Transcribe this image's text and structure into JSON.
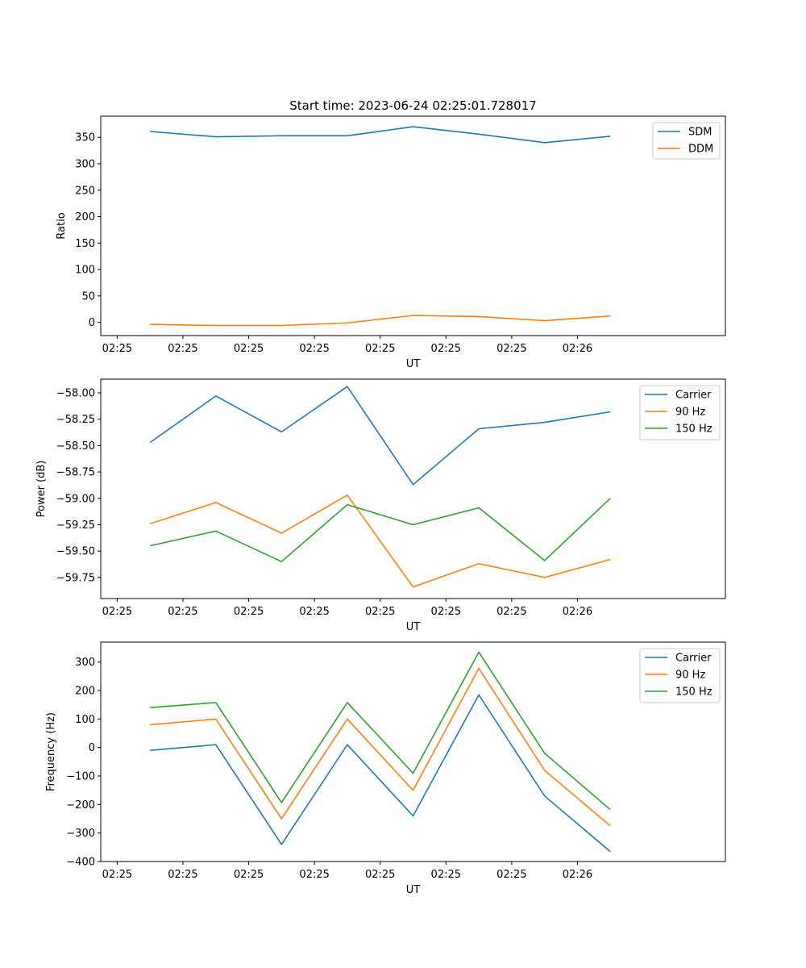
{
  "title": "Start time: 2023-06-24 02:25:01.728017",
  "colors": {
    "c0": "#1f77b4",
    "c1": "#ff7f0e",
    "c2": "#2ca02c"
  },
  "chart_data": [
    {
      "type": "line",
      "xlabel": "UT",
      "ylabel": "Ratio",
      "xticks": [
        "02:25",
        "02:25",
        "02:25",
        "02:25",
        "02:25",
        "02:25",
        "02:25",
        "02:26"
      ],
      "xlim": [
        -0.25,
        9.25
      ],
      "ylim": [
        -25,
        390
      ],
      "yticks": [
        0,
        50,
        100,
        150,
        200,
        250,
        300,
        350
      ],
      "x": [
        0.5,
        1.5,
        2.5,
        3.5,
        4.5,
        5.5,
        6.5,
        7.5
      ],
      "legend_position": "top-right",
      "series": [
        {
          "name": "SDM",
          "color": "#1f77b4",
          "values": [
            361,
            351,
            353,
            353,
            370,
            356,
            340,
            352
          ]
        },
        {
          "name": "DDM",
          "color": "#ff7f0e",
          "values": [
            -4,
            -6,
            -6,
            -1,
            13,
            11,
            3,
            12
          ]
        }
      ]
    },
    {
      "type": "line",
      "xlabel": "UT",
      "ylabel": "Power (dB)",
      "xticks": [
        "02:25",
        "02:25",
        "02:25",
        "02:25",
        "02:25",
        "02:25",
        "02:25",
        "02:26"
      ],
      "xlim": [
        -0.25,
        9.25
      ],
      "ylim": [
        -59.95,
        -57.87
      ],
      "yticks": [
        -58.0,
        -58.25,
        -58.5,
        -58.75,
        -59.0,
        -59.25,
        -59.5,
        -59.75
      ],
      "ytick_labels": [
        "−58.00",
        "−58.25",
        "−58.50",
        "−58.75",
        "−59.00",
        "−59.25",
        "−59.50",
        "−59.75"
      ],
      "x": [
        0.5,
        1.5,
        2.5,
        3.5,
        4.5,
        5.5,
        6.5,
        7.5
      ],
      "legend_position": "top-right",
      "series": [
        {
          "name": "Carrier",
          "color": "#1f77b4",
          "values": [
            -58.47,
            -58.03,
            -58.37,
            -57.94,
            -58.87,
            -58.34,
            -58.28,
            -58.18
          ]
        },
        {
          "name": "90 Hz",
          "color": "#ff7f0e",
          "values": [
            -59.24,
            -59.04,
            -59.33,
            -58.97,
            -59.84,
            -59.62,
            -59.75,
            -59.58
          ]
        },
        {
          "name": "150 Hz",
          "color": "#2ca02c",
          "values": [
            -59.45,
            -59.31,
            -59.6,
            -59.06,
            -59.25,
            -59.09,
            -59.59,
            -59.0
          ]
        }
      ]
    },
    {
      "type": "line",
      "xlabel": "UT",
      "ylabel": "Frequency (Hz)",
      "xticks": [
        "02:25",
        "02:25",
        "02:25",
        "02:25",
        "02:25",
        "02:25",
        "02:25",
        "02:26"
      ],
      "xlim": [
        -0.25,
        9.25
      ],
      "ylim": [
        -400,
        370
      ],
      "yticks": [
        300,
        200,
        100,
        0,
        -100,
        -200,
        -300,
        -400
      ],
      "ytick_labels": [
        "300",
        "200",
        "100",
        "0",
        "−100",
        "−200",
        "−300",
        "−400"
      ],
      "x": [
        0.5,
        1.5,
        2.5,
        3.5,
        4.5,
        5.5,
        6.5,
        7.5
      ],
      "legend_position": "top-right",
      "series": [
        {
          "name": "Carrier",
          "color": "#1f77b4",
          "values": [
            -10,
            10,
            -340,
            10,
            -240,
            185,
            -170,
            -365
          ]
        },
        {
          "name": "90 Hz",
          "color": "#ff7f0e",
          "values": [
            80,
            100,
            -250,
            100,
            -150,
            278,
            -80,
            -275
          ]
        },
        {
          "name": "150 Hz",
          "color": "#2ca02c",
          "values": [
            140,
            158,
            -193,
            158,
            -90,
            335,
            -20,
            -218
          ]
        }
      ]
    }
  ]
}
